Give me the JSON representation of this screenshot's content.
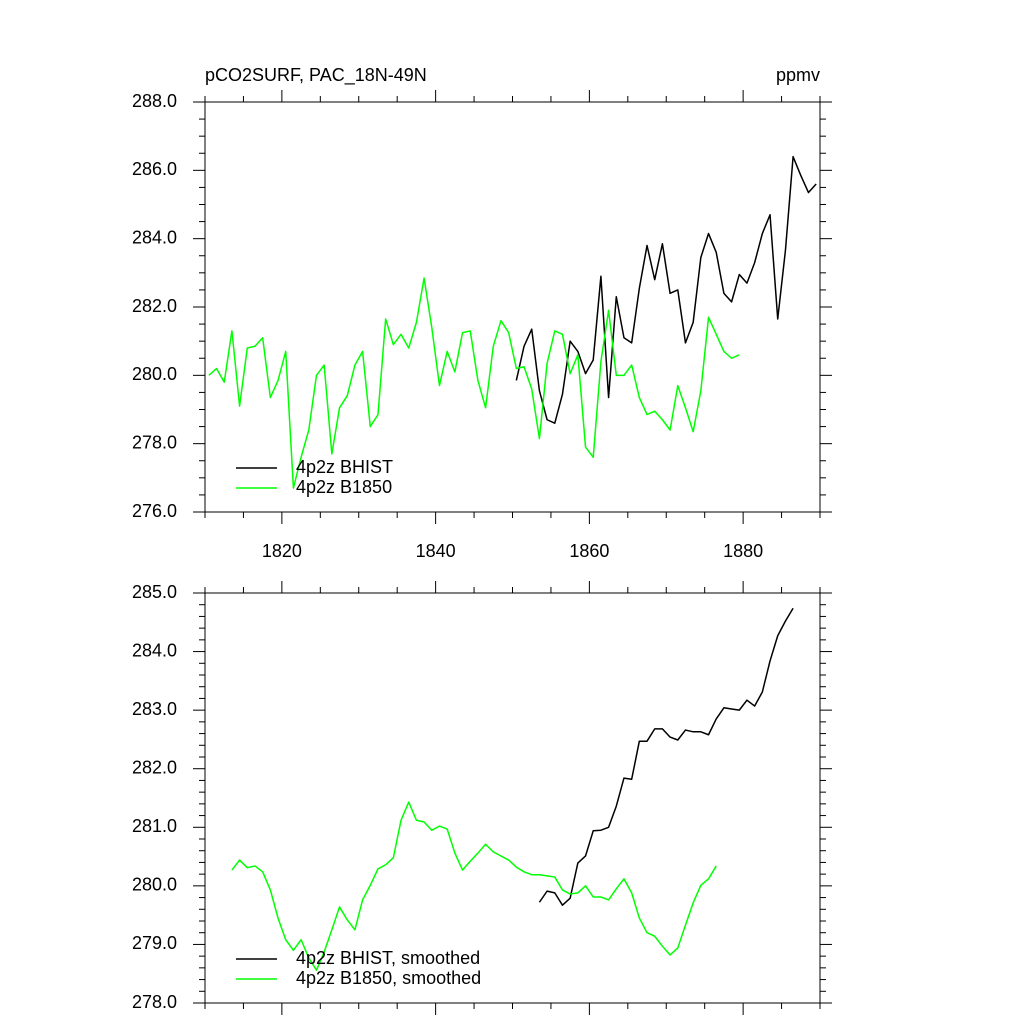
{
  "chart_data": [
    {
      "type": "line",
      "title": "pCO2SURF, PAC_18N-49N",
      "units_label": "ppmv",
      "xlim": [
        1810,
        1890
      ],
      "ylim": [
        276,
        288
      ],
      "xticks": [
        1820,
        1840,
        1860,
        1880
      ],
      "xminorticks": [
        1810,
        1815,
        1825,
        1830,
        1835,
        1845,
        1850,
        1855,
        1865,
        1870,
        1875,
        1885,
        1890
      ],
      "yticks": [
        {
          "value": 276,
          "label": "276.0"
        },
        {
          "value": 278,
          "label": "278.0"
        },
        {
          "value": 280,
          "label": "280.0"
        },
        {
          "value": 282,
          "label": "282.0"
        },
        {
          "value": 284,
          "label": "284.0"
        },
        {
          "value": 286,
          "label": "286.0"
        },
        {
          "value": 288,
          "label": "288.0"
        }
      ],
      "yminorticks": [
        276.5,
        277,
        277.5,
        278.5,
        279,
        279.5,
        280.5,
        281,
        281.5,
        282.5,
        283,
        283.5,
        284.5,
        285,
        285.5,
        286.5,
        287,
        287.5
      ],
      "xticklabels": true,
      "series": [
        {
          "name": "4p2z BHIST",
          "color": "#000000",
          "x": [
            1850.5,
            1851.5,
            1852.5,
            1853.5,
            1854.5,
            1855.5,
            1856.5,
            1857.5,
            1858.5,
            1859.5,
            1860.5,
            1861.5,
            1862.5,
            1863.5,
            1864.5,
            1865.5,
            1866.5,
            1867.5,
            1868.5,
            1869.5,
            1870.5,
            1871.5,
            1872.5,
            1873.5,
            1874.5,
            1875.5,
            1876.5,
            1877.5,
            1878.5,
            1879.5,
            1880.5,
            1881.5,
            1882.5,
            1883.5,
            1884.5,
            1885.5,
            1886.5,
            1887.5,
            1888.5,
            1889.5
          ],
          "values": [
            279.85,
            280.85,
            281.35,
            279.55,
            278.7,
            278.6,
            279.45,
            281.0,
            280.7,
            280.05,
            280.45,
            282.9,
            279.35,
            282.3,
            281.1,
            280.95,
            282.55,
            283.8,
            282.8,
            283.85,
            282.4,
            282.5,
            280.95,
            281.55,
            283.45,
            284.15,
            283.6,
            282.4,
            282.15,
            282.95,
            282.7,
            283.3,
            284.15,
            284.7,
            281.65,
            283.65,
            286.4,
            285.85,
            285.35,
            285.6
          ]
        },
        {
          "name": "4p2z B1850",
          "color": "#00ff00",
          "x": [
            1810.5,
            1811.5,
            1812.5,
            1813.5,
            1814.5,
            1815.5,
            1816.5,
            1817.5,
            1818.5,
            1819.5,
            1820.5,
            1821.5,
            1822.5,
            1823.5,
            1824.5,
            1825.5,
            1826.5,
            1827.5,
            1828.5,
            1829.5,
            1830.5,
            1831.5,
            1832.5,
            1833.5,
            1834.5,
            1835.5,
            1836.5,
            1837.5,
            1838.5,
            1839.5,
            1840.5,
            1841.5,
            1842.5,
            1843.5,
            1844.5,
            1845.5,
            1846.5,
            1847.5,
            1848.5,
            1849.5,
            1850.5,
            1851.5,
            1852.5,
            1853.5,
            1854.5,
            1855.5,
            1856.5,
            1857.5,
            1858.5,
            1859.5,
            1860.5,
            1861.5,
            1862.5,
            1863.5,
            1864.5,
            1865.5,
            1866.5,
            1867.5,
            1868.5,
            1869.5,
            1870.5,
            1871.5,
            1872.5,
            1873.5,
            1874.5,
            1875.5,
            1876.5,
            1877.5,
            1878.5,
            1879.5
          ],
          "values": [
            280.0,
            280.2,
            279.8,
            281.3,
            279.1,
            280.8,
            280.85,
            281.1,
            279.35,
            279.85,
            280.7,
            276.7,
            277.6,
            278.4,
            280.0,
            280.3,
            277.7,
            279.05,
            279.4,
            280.3,
            280.7,
            278.5,
            278.85,
            281.65,
            280.9,
            281.2,
            280.8,
            281.55,
            282.85,
            281.4,
            279.7,
            280.7,
            280.1,
            281.25,
            281.3,
            279.85,
            279.05,
            280.85,
            281.6,
            281.25,
            280.2,
            280.25,
            279.6,
            278.15,
            280.35,
            281.3,
            281.2,
            280.05,
            280.6,
            277.9,
            277.6,
            280.4,
            281.9,
            280.0,
            280.0,
            280.3,
            279.35,
            278.85,
            278.95,
            278.7,
            278.4,
            279.7,
            279.05,
            278.35,
            279.55,
            281.7,
            281.2,
            280.7,
            280.5,
            280.6
          ]
        }
      ]
    },
    {
      "type": "line",
      "xlim": [
        1810,
        1890
      ],
      "ylim": [
        278,
        285
      ],
      "xticks": [
        1820,
        1840,
        1860,
        1880
      ],
      "xminorticks": [
        1810,
        1815,
        1825,
        1830,
        1835,
        1845,
        1850,
        1855,
        1865,
        1870,
        1875,
        1885,
        1890
      ],
      "yticks": [
        {
          "value": 278,
          "label": "278.0"
        },
        {
          "value": 279,
          "label": "279.0"
        },
        {
          "value": 280,
          "label": "280.0"
        },
        {
          "value": 281,
          "label": "281.0"
        },
        {
          "value": 282,
          "label": "282.0"
        },
        {
          "value": 283,
          "label": "283.0"
        },
        {
          "value": 284,
          "label": "284.0"
        },
        {
          "value": 285,
          "label": "285.0"
        }
      ],
      "yminorticks": [
        278.2,
        278.4,
        278.6,
        278.8,
        279.2,
        279.4,
        279.6,
        279.8,
        280.2,
        280.4,
        280.6,
        280.8,
        281.2,
        281.4,
        281.6,
        281.8,
        282.2,
        282.4,
        282.6,
        282.8,
        283.2,
        283.4,
        283.6,
        283.8,
        284.2,
        284.4,
        284.6,
        284.8
      ],
      "xticklabels": false,
      "series": [
        {
          "name": "4p2z BHIST, smoothed",
          "color": "#000000",
          "x": [
            1853.5,
            1854.5,
            1855.5,
            1856.5,
            1857.5,
            1858.5,
            1859.5,
            1860.5,
            1861.5,
            1862.5,
            1863.5,
            1864.5,
            1865.5,
            1866.5,
            1867.5,
            1868.5,
            1869.5,
            1870.5,
            1871.5,
            1872.5,
            1873.5,
            1874.5,
            1875.5,
            1876.5,
            1877.5,
            1878.5,
            1879.5,
            1880.5,
            1881.5,
            1882.5,
            1883.5,
            1884.5,
            1885.5,
            1886.5
          ],
          "values": [
            279.72,
            279.91,
            279.88,
            279.67,
            279.79,
            280.39,
            280.51,
            280.94,
            280.95,
            281.0,
            281.36,
            281.84,
            281.82,
            282.47,
            282.47,
            282.68,
            282.68,
            282.54,
            282.49,
            282.66,
            282.63,
            282.63,
            282.58,
            282.85,
            283.04,
            283.02,
            283.0,
            283.17,
            283.07,
            283.31,
            283.84,
            284.27,
            284.52,
            284.74
          ]
        },
        {
          "name": "4p2z B1850, smoothed",
          "color": "#00ff00",
          "x": [
            1813.5,
            1814.5,
            1815.5,
            1816.5,
            1817.5,
            1818.5,
            1819.5,
            1820.5,
            1821.5,
            1822.5,
            1823.5,
            1824.5,
            1825.5,
            1826.5,
            1827.5,
            1828.5,
            1829.5,
            1830.5,
            1831.5,
            1832.5,
            1833.5,
            1834.5,
            1835.5,
            1836.5,
            1837.5,
            1838.5,
            1839.5,
            1840.5,
            1841.5,
            1842.5,
            1843.5,
            1844.5,
            1845.5,
            1846.5,
            1847.5,
            1848.5,
            1849.5,
            1850.5,
            1851.5,
            1852.5,
            1853.5,
            1854.5,
            1855.5,
            1856.5,
            1857.5,
            1858.5,
            1859.5,
            1860.5,
            1861.5,
            1862.5,
            1863.5,
            1864.5,
            1865.5,
            1866.5,
            1867.5,
            1868.5,
            1869.5,
            1870.5,
            1871.5,
            1872.5,
            1873.5,
            1874.5,
            1875.5,
            1876.5
          ],
          "values": [
            280.27,
            280.44,
            280.31,
            280.34,
            280.24,
            279.93,
            279.45,
            279.08,
            278.9,
            279.08,
            278.77,
            278.56,
            278.87,
            279.25,
            279.64,
            279.42,
            279.25,
            279.76,
            280.01,
            280.29,
            280.36,
            280.48,
            281.12,
            281.43,
            281.12,
            281.09,
            280.95,
            281.02,
            280.97,
            280.56,
            280.27,
            280.42,
            280.56,
            280.71,
            280.58,
            280.51,
            280.44,
            280.32,
            280.24,
            280.19,
            280.19,
            280.17,
            280.15,
            279.93,
            279.86,
            279.88,
            280.0,
            279.81,
            279.81,
            279.76,
            279.95,
            280.12,
            279.88,
            279.45,
            279.2,
            279.14,
            278.97,
            278.82,
            278.94,
            279.33,
            279.71,
            280.01,
            280.12,
            280.34
          ]
        }
      ]
    }
  ]
}
